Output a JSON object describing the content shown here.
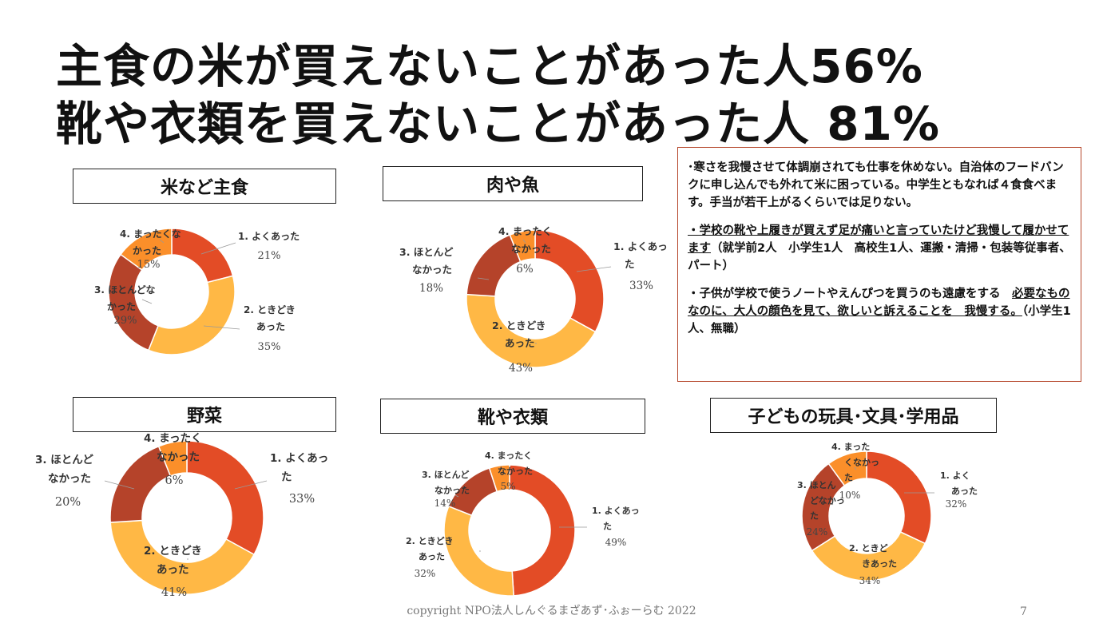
{
  "headline": {
    "line1": "主食の米が買えないことがあった人56%",
    "line2": "靴や衣類を買えないことがあった人 81%"
  },
  "note": {
    "p1": "･寒さを我慢させて体調崩されても仕事を休めない。自治体のフードバンクに申し込んでも外れて米に困っている。中学生ともなれば４食食べます。手当が若干上がるくらいでは足りない。",
    "p2_under": "・学校の靴や上履きが買えず足が痛いと言っていたけど我慢して履かせてます",
    "p2_rest": "（就学前2人　小学生1人　高校生1人、運搬・清掃・包装等従事者、パート）",
    "p3_plain": "・子供が学校で使うノートやえんぴつを買うのも遠慮をする　",
    "p3_under": "必要なものなのに、大人の顔色を見て、欲しいと訴えることを　我慢する。",
    "p3_rest": "（小学生1人、無職）"
  },
  "colors": [
    "#E34C26",
    "#FFB845",
    "#B5432A",
    "#FB8F2A"
  ],
  "chart_data": [
    {
      "type": "pie",
      "title": "米など主食",
      "categories": [
        "1. よくあった",
        "2. ときどきあった",
        "3. ほとんどなかった",
        "4. まったくなかった"
      ],
      "labels": [
        [
          "1. よくあった"
        ],
        [
          "2. ときどき",
          "あった"
        ],
        [
          "3. ほとんどな",
          "かった"
        ],
        [
          "4. まったくな",
          "かった"
        ]
      ],
      "values": [
        21,
        35,
        29,
        15
      ],
      "pct_labels": [
        "21%",
        "35%",
        "29%",
        "15%"
      ]
    },
    {
      "type": "pie",
      "title": "肉や魚",
      "categories": [
        "1. よくあった",
        "2. ときどきあった",
        "3. ほとんどなかった",
        "4. まったくなかった"
      ],
      "labels": [
        [
          "1. よくあっ",
          "た"
        ],
        [
          "2. ときどき",
          "あった"
        ],
        [
          "3. ほとんど",
          "なかった"
        ],
        [
          "4. まったく",
          "なかった"
        ]
      ],
      "values": [
        33,
        43,
        18,
        6
      ],
      "pct_labels": [
        "33%",
        "43%",
        "18%",
        "6%"
      ]
    },
    {
      "type": "pie",
      "title": "野菜",
      "categories": [
        "1. よくあった",
        "2. ときどきあった",
        "3. ほとんどなかった",
        "4. まったくなかった"
      ],
      "labels": [
        [
          "1. よくあっ",
          "た"
        ],
        [
          "2. ときどき",
          "あった"
        ],
        [
          "3. ほとんど",
          "なかった"
        ],
        [
          "4. まったく",
          "なかった"
        ]
      ],
      "values": [
        33,
        41,
        20,
        6
      ],
      "pct_labels": [
        "33%",
        "41%",
        "20%",
        "6%"
      ]
    },
    {
      "type": "pie",
      "title": "靴や衣類",
      "categories": [
        "1. よくあった",
        "2. ときどきあった",
        "3. ほとんどなかった",
        "4. まったくなかった"
      ],
      "labels": [
        [
          "1. よくあっ",
          "た"
        ],
        [
          "2. ときどき",
          "あった"
        ],
        [
          "3. ほとんど",
          "なかった"
        ],
        [
          "4. まったく",
          "なかった"
        ]
      ],
      "values": [
        49,
        32,
        14,
        5
      ],
      "pct_labels": [
        "49%",
        "32%",
        "14%",
        "5%"
      ]
    },
    {
      "type": "pie",
      "title": "子どもの玩具･文具･学用品",
      "categories": [
        "1. よくあった",
        "2. ときどきあった",
        "3. ほとんどなかった",
        "4. まったくなかった"
      ],
      "labels": [
        [
          "1. よく",
          "あった"
        ],
        [
          "2. ときど",
          "きあった"
        ],
        [
          "3. ほとん",
          "どなかっ",
          "た"
        ],
        [
          "4. まった",
          "くなかっ",
          "た"
        ]
      ],
      "values": [
        32,
        34,
        24,
        10
      ],
      "pct_labels": [
        "32%",
        "34%",
        "24%",
        "10%"
      ]
    }
  ],
  "footer": "copyright NPO法人しんぐるまざあず･ふぉーらむ  2022",
  "page_number": "7"
}
